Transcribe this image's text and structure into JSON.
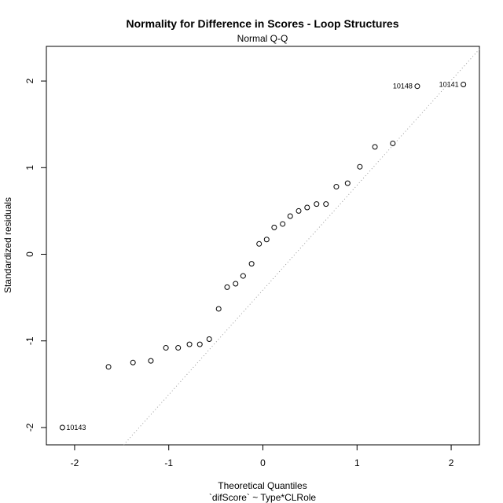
{
  "chart_data": {
    "type": "scatter",
    "title": "Normality for Difference in Scores - Loop Structures",
    "subtitle": "Normal Q-Q",
    "xlabel": "Theoretical Quantiles",
    "xlabel2": "`difScore` ~ Type*CLRole",
    "ylabel": "Standardized residuals",
    "xlim": [
      -2.3,
      2.3
    ],
    "ylim": [
      -2.2,
      2.4
    ],
    "x_ticks": [
      -2,
      -1,
      0,
      1,
      2
    ],
    "y_ticks": [
      -2,
      -1,
      0,
      1,
      2
    ],
    "x_tick_labels": [
      "-2",
      "-1",
      "0",
      "1",
      "2"
    ],
    "y_tick_labels": [
      "-2",
      "-1",
      "0",
      "1",
      "2"
    ],
    "grid": false,
    "reference_line": {
      "style": "dotted",
      "points": [
        [
          -2.0,
          -2.83
        ],
        [
          2.5,
          2.61
        ]
      ]
    },
    "points": [
      {
        "x": -2.13,
        "y": -2.0
      },
      {
        "x": -1.64,
        "y": -1.3
      },
      {
        "x": -1.38,
        "y": -1.25
      },
      {
        "x": -1.19,
        "y": -1.23
      },
      {
        "x": -1.03,
        "y": -1.08
      },
      {
        "x": -0.9,
        "y": -1.08
      },
      {
        "x": -0.78,
        "y": -1.04
      },
      {
        "x": -0.67,
        "y": -1.04
      },
      {
        "x": -0.57,
        "y": -0.98
      },
      {
        "x": -0.47,
        "y": -0.63
      },
      {
        "x": -0.38,
        "y": -0.38
      },
      {
        "x": -0.29,
        "y": -0.34
      },
      {
        "x": -0.21,
        "y": -0.25
      },
      {
        "x": -0.12,
        "y": -0.11
      },
      {
        "x": -0.04,
        "y": 0.12
      },
      {
        "x": 0.04,
        "y": 0.17
      },
      {
        "x": 0.12,
        "y": 0.31
      },
      {
        "x": 0.21,
        "y": 0.35
      },
      {
        "x": 0.29,
        "y": 0.44
      },
      {
        "x": 0.38,
        "y": 0.5
      },
      {
        "x": 0.47,
        "y": 0.54
      },
      {
        "x": 0.57,
        "y": 0.58
      },
      {
        "x": 0.67,
        "y": 0.58
      },
      {
        "x": 0.78,
        "y": 0.78
      },
      {
        "x": 0.9,
        "y": 0.82
      },
      {
        "x": 1.03,
        "y": 1.01
      },
      {
        "x": 1.19,
        "y": 1.24
      },
      {
        "x": 1.38,
        "y": 1.28
      },
      {
        "x": 1.64,
        "y": 1.94
      },
      {
        "x": 2.13,
        "y": 1.96
      }
    ],
    "point_labels": [
      {
        "text": "10143",
        "x": -2.13,
        "y": -2.0,
        "side": "right"
      },
      {
        "text": "10148",
        "x": 1.64,
        "y": 1.94,
        "side": "left"
      },
      {
        "text": "10141",
        "x": 2.13,
        "y": 1.96,
        "side": "left"
      }
    ]
  }
}
